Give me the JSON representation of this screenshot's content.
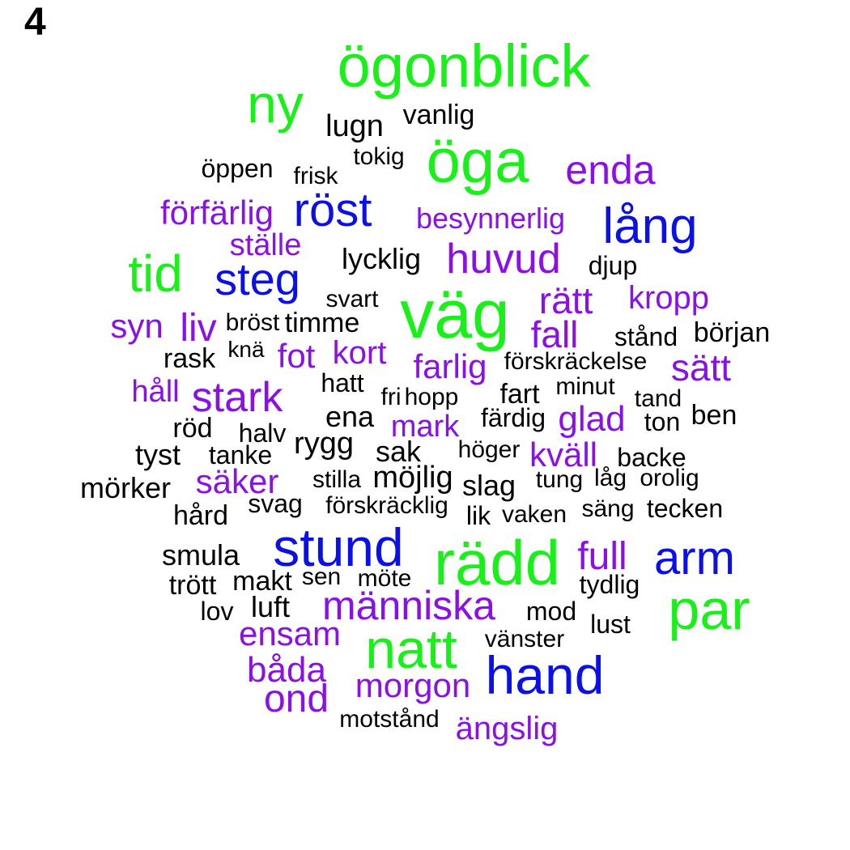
{
  "panel_label": "4",
  "colors": {
    "green": "#19f019",
    "blue": "#0a10e6",
    "purple": "#8a10e6",
    "black": "#000000"
  },
  "words": [
    {
      "text": "ögonblick",
      "tier": "green"
    },
    {
      "text": "ny",
      "tier": "green"
    },
    {
      "text": "vanlig",
      "tier": "black"
    },
    {
      "text": "lugn",
      "tier": "black"
    },
    {
      "text": "öga",
      "tier": "green"
    },
    {
      "text": "tokig",
      "tier": "black"
    },
    {
      "text": "öppen",
      "tier": "black"
    },
    {
      "text": "frisk",
      "tier": "black"
    },
    {
      "text": "enda",
      "tier": "purple"
    },
    {
      "text": "förfärlig",
      "tier": "purple"
    },
    {
      "text": "röst",
      "tier": "blue"
    },
    {
      "text": "besynnerlig",
      "tier": "purple"
    },
    {
      "text": "lång",
      "tier": "blue"
    },
    {
      "text": "ställe",
      "tier": "purple"
    },
    {
      "text": "tid",
      "tier": "green"
    },
    {
      "text": "lycklig",
      "tier": "black"
    },
    {
      "text": "huvud",
      "tier": "purple"
    },
    {
      "text": "djup",
      "tier": "black"
    },
    {
      "text": "steg",
      "tier": "blue"
    },
    {
      "text": "svart",
      "tier": "black"
    },
    {
      "text": "väg",
      "tier": "green"
    },
    {
      "text": "rätt",
      "tier": "purple"
    },
    {
      "text": "kropp",
      "tier": "purple"
    },
    {
      "text": "syn",
      "tier": "purple"
    },
    {
      "text": "liv",
      "tier": "purple"
    },
    {
      "text": "bröst",
      "tier": "black"
    },
    {
      "text": "timme",
      "tier": "black"
    },
    {
      "text": "fall",
      "tier": "purple"
    },
    {
      "text": "stånd",
      "tier": "black"
    },
    {
      "text": "början",
      "tier": "black"
    },
    {
      "text": "rask",
      "tier": "black"
    },
    {
      "text": "knä",
      "tier": "black"
    },
    {
      "text": "fot",
      "tier": "purple"
    },
    {
      "text": "kort",
      "tier": "purple"
    },
    {
      "text": "farlig",
      "tier": "purple"
    },
    {
      "text": "förskräckelse",
      "tier": "black"
    },
    {
      "text": "sätt",
      "tier": "purple"
    },
    {
      "text": "håll",
      "tier": "purple"
    },
    {
      "text": "stark",
      "tier": "purple"
    },
    {
      "text": "hatt",
      "tier": "black"
    },
    {
      "text": "fri",
      "tier": "black"
    },
    {
      "text": "hopp",
      "tier": "black"
    },
    {
      "text": "fart",
      "tier": "black"
    },
    {
      "text": "minut",
      "tier": "black"
    },
    {
      "text": "tand",
      "tier": "black"
    },
    {
      "text": "ena",
      "tier": "black"
    },
    {
      "text": "färdig",
      "tier": "black"
    },
    {
      "text": "glad",
      "tier": "purple"
    },
    {
      "text": "ben",
      "tier": "black"
    },
    {
      "text": "röd",
      "tier": "black"
    },
    {
      "text": "halv",
      "tier": "black"
    },
    {
      "text": "mark",
      "tier": "purple"
    },
    {
      "text": "ton",
      "tier": "black"
    },
    {
      "text": "rygg",
      "tier": "black"
    },
    {
      "text": "tyst",
      "tier": "black"
    },
    {
      "text": "tanke",
      "tier": "black"
    },
    {
      "text": "sak",
      "tier": "black"
    },
    {
      "text": "höger",
      "tier": "black"
    },
    {
      "text": "kväll",
      "tier": "purple"
    },
    {
      "text": "backe",
      "tier": "black"
    },
    {
      "text": "säker",
      "tier": "purple"
    },
    {
      "text": "stilla",
      "tier": "black"
    },
    {
      "text": "möjlig",
      "tier": "black"
    },
    {
      "text": "slag",
      "tier": "black"
    },
    {
      "text": "tung",
      "tier": "black"
    },
    {
      "text": "låg",
      "tier": "black"
    },
    {
      "text": "orolig",
      "tier": "black"
    },
    {
      "text": "mörker",
      "tier": "black"
    },
    {
      "text": "svag",
      "tier": "black"
    },
    {
      "text": "förskräcklig",
      "tier": "black"
    },
    {
      "text": "säng",
      "tier": "black"
    },
    {
      "text": "tecken",
      "tier": "black"
    },
    {
      "text": "hård",
      "tier": "black"
    },
    {
      "text": "lik",
      "tier": "black"
    },
    {
      "text": "vaken",
      "tier": "black"
    },
    {
      "text": "stund",
      "tier": "blue"
    },
    {
      "text": "rädd",
      "tier": "green"
    },
    {
      "text": "full",
      "tier": "purple"
    },
    {
      "text": "arm",
      "tier": "blue"
    },
    {
      "text": "smula",
      "tier": "black"
    },
    {
      "text": "trött",
      "tier": "black"
    },
    {
      "text": "makt",
      "tier": "black"
    },
    {
      "text": "sen",
      "tier": "black"
    },
    {
      "text": "möte",
      "tier": "black"
    },
    {
      "text": "tydlig",
      "tier": "black"
    },
    {
      "text": "par",
      "tier": "green"
    },
    {
      "text": "lov",
      "tier": "black"
    },
    {
      "text": "luft",
      "tier": "black"
    },
    {
      "text": "människa",
      "tier": "purple"
    },
    {
      "text": "mod",
      "tier": "black"
    },
    {
      "text": "lust",
      "tier": "black"
    },
    {
      "text": "ensam",
      "tier": "purple"
    },
    {
      "text": "natt",
      "tier": "green"
    },
    {
      "text": "vänster",
      "tier": "black"
    },
    {
      "text": "båda",
      "tier": "purple"
    },
    {
      "text": "hand",
      "tier": "blue"
    },
    {
      "text": "ond",
      "tier": "purple"
    },
    {
      "text": "morgon",
      "tier": "purple"
    },
    {
      "text": "motstånd",
      "tier": "black"
    },
    {
      "text": "ängslig",
      "tier": "purple"
    }
  ]
}
